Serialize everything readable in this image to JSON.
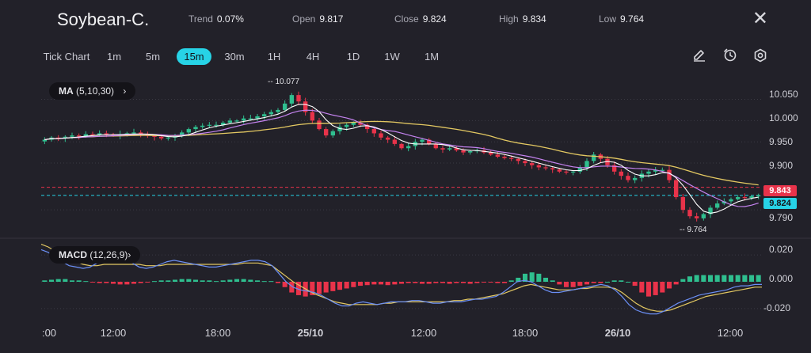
{
  "header": {
    "symbol": "Soybean-C.",
    "trend_label": "Trend",
    "trend_value": "0.07%",
    "open_label": "Open",
    "open_value": "9.817",
    "close_label": "Close",
    "close_value": "9.824",
    "high_label": "High",
    "high_value": "9.834",
    "low_label": "Low",
    "low_value": "9.764",
    "close_icon": "close-icon"
  },
  "timeframes": [
    "Tick Chart",
    "1m",
    "5m",
    "15m",
    "30m",
    "1H",
    "4H",
    "1D",
    "1W",
    "1M"
  ],
  "active_timeframe": "15m",
  "tools": [
    "pencil-icon",
    "timer-icon",
    "settings-icon"
  ],
  "indicators": {
    "ma_label": "MA",
    "ma_params": "(5,10,30)",
    "macd_label": "MACD",
    "macd_params": "(12,26,9)"
  },
  "price_axis": {
    "ticks": [
      "10.050",
      "10.000",
      "9.950",
      "9.900",
      "9.790"
    ],
    "bid_tag": "9.843",
    "last_tag": "9.824"
  },
  "macd_axis": {
    "ticks": [
      "0.020",
      "0.000",
      "-0.020"
    ]
  },
  "annotations": {
    "high": "10.077",
    "low": "9.764"
  },
  "time_axis": [
    ":00",
    "12:00",
    "18:00",
    "25/10",
    "12:00",
    "18:00",
    "26/10",
    "12:00"
  ],
  "colors": {
    "up": "#2fbf8f",
    "down": "#e8334a",
    "accent": "#27d3e6",
    "ma_fast": "#ffffff",
    "ma_mid": "#c583f0",
    "ma_slow": "#e3c862",
    "macd_line": "#6b8ff5",
    "signal_line": "#e3c862"
  },
  "chart_data": [
    {
      "type": "candlestick",
      "title": "Soybean-C. 15m",
      "price_range": [
        9.74,
        10.09
      ],
      "close_series": [
        9.955,
        9.96,
        9.958,
        9.962,
        9.965,
        9.963,
        9.968,
        9.966,
        9.97,
        9.967,
        9.965,
        9.968,
        9.97,
        9.972,
        9.967,
        9.964,
        9.962,
        9.958,
        9.96,
        9.965,
        9.972,
        9.98,
        9.985,
        9.988,
        9.99,
        9.99,
        9.995,
        10.0,
        10.0,
        10.005,
        10.005,
        10.01,
        10.015,
        10.02,
        10.025,
        10.04,
        10.06,
        10.045,
        10.02,
        10.0,
        9.98,
        9.965,
        9.975,
        9.985,
        9.99,
        9.995,
        9.99,
        9.98,
        9.97,
        9.96,
        9.955,
        9.945,
        9.935,
        9.94,
        9.95,
        9.955,
        9.945,
        9.935,
        9.932,
        9.935,
        9.93,
        9.925,
        9.928,
        9.93,
        9.925,
        9.92,
        9.915,
        9.912,
        9.91,
        9.905,
        9.9,
        9.895,
        9.89,
        9.888,
        9.885,
        9.88,
        9.878,
        9.88,
        9.89,
        9.905,
        9.92,
        9.91,
        9.895,
        9.88,
        9.87,
        9.86,
        9.865,
        9.875,
        9.88,
        9.884,
        9.884,
        9.86,
        9.82,
        9.79,
        9.775,
        9.77,
        9.78,
        9.795,
        9.805,
        9.81,
        9.815,
        9.82,
        9.818,
        9.822,
        9.824
      ],
      "ma_periods": [
        5,
        10,
        30
      ],
      "annotations": {
        "high": 10.077,
        "low": 9.764
      },
      "reference_lines": [
        9.843,
        9.824
      ]
    },
    {
      "type": "bar",
      "title": "MACD (12,26,9)",
      "range": [
        -0.026,
        0.026
      ],
      "histogram": [
        0.001,
        0.0015,
        0.002,
        0.002,
        0.001,
        0.001,
        0.0005,
        -0.0005,
        -0.001,
        -0.001,
        -0.0015,
        -0.002,
        -0.002,
        -0.0015,
        -0.001,
        -0.0005,
        0.0005,
        0.001,
        0.001,
        0.0015,
        0.002,
        0.002,
        0.0015,
        0.001,
        0.001,
        0.0005,
        0.001,
        0.0015,
        0.002,
        0.002,
        0.0015,
        0.001,
        0.0005,
        0.0005,
        -0.001,
        -0.004,
        -0.008,
        -0.01,
        -0.011,
        -0.01,
        -0.009,
        -0.008,
        -0.007,
        -0.006,
        -0.005,
        -0.004,
        -0.003,
        -0.0025,
        -0.002,
        -0.002,
        -0.0025,
        -0.002,
        -0.0015,
        -0.001,
        -0.001,
        -0.0015,
        -0.0015,
        -0.001,
        -0.001,
        -0.0015,
        -0.001,
        -0.001,
        -0.0015,
        -0.001,
        -0.0005,
        -0.0005,
        -0.001,
        -0.001,
        0.001,
        0.003,
        0.006,
        0.007,
        0.006,
        0.003,
        0.001,
        -0.002,
        -0.004,
        -0.004,
        -0.003,
        -0.002,
        -0.001,
        -0.001,
        0.0,
        0.001,
        0.001,
        0.0,
        -0.003,
        -0.008,
        -0.011,
        -0.01,
        -0.008,
        -0.005,
        -0.002,
        0.002,
        0.004,
        0.005,
        0.005,
        0.005,
        0.005,
        0.005,
        0.005,
        0.005,
        0.005,
        0.005,
        0.005
      ],
      "macd_line": [
        0.024,
        0.022,
        0.018,
        0.015,
        0.012,
        0.011,
        0.01,
        0.011,
        0.014,
        0.017,
        0.019,
        0.019,
        0.017,
        0.014,
        0.011,
        0.01,
        0.011,
        0.013,
        0.015,
        0.016,
        0.015,
        0.014,
        0.013,
        0.012,
        0.011,
        0.011,
        0.012,
        0.013,
        0.014,
        0.015,
        0.016,
        0.016,
        0.015,
        0.012,
        0.006,
        0.0,
        -0.004,
        -0.006,
        -0.007,
        -0.008,
        -0.01,
        -0.013,
        -0.016,
        -0.018,
        -0.018,
        -0.016,
        -0.015,
        -0.016,
        -0.017,
        -0.016,
        -0.015,
        -0.015,
        -0.015,
        -0.014,
        -0.014,
        -0.015,
        -0.016,
        -0.016,
        -0.015,
        -0.015,
        -0.015,
        -0.014,
        -0.013,
        -0.013,
        -0.012,
        -0.011,
        -0.008,
        -0.004,
        0.0,
        0.001,
        0.0,
        -0.003,
        -0.006,
        -0.008,
        -0.008,
        -0.007,
        -0.006,
        -0.005,
        -0.004,
        -0.003,
        -0.002,
        -0.003,
        -0.006,
        -0.011,
        -0.017,
        -0.021,
        -0.023,
        -0.024,
        -0.024,
        -0.022,
        -0.019,
        -0.016,
        -0.014,
        -0.012,
        -0.01,
        -0.009,
        -0.008,
        -0.007,
        -0.006,
        -0.004,
        -0.003,
        -0.003,
        -0.002,
        -0.002
      ],
      "signal_line": [
        0.028,
        0.026,
        0.023,
        0.02,
        0.017,
        0.015,
        0.013,
        0.012,
        0.012,
        0.013,
        0.013,
        0.013,
        0.013,
        0.013,
        0.013,
        0.012,
        0.012,
        0.012,
        0.013,
        0.013,
        0.013,
        0.013,
        0.013,
        0.013,
        0.013,
        0.013,
        0.013,
        0.013,
        0.013,
        0.014,
        0.014,
        0.014,
        0.013,
        0.012,
        0.008,
        0.004,
        0.0,
        -0.003,
        -0.006,
        -0.009,
        -0.011,
        -0.013,
        -0.015,
        -0.016,
        -0.017,
        -0.017,
        -0.017,
        -0.017,
        -0.017,
        -0.016,
        -0.016,
        -0.015,
        -0.015,
        -0.015,
        -0.015,
        -0.015,
        -0.015,
        -0.015,
        -0.015,
        -0.014,
        -0.014,
        -0.013,
        -0.013,
        -0.012,
        -0.011,
        -0.01,
        -0.009,
        -0.007,
        -0.005,
        -0.003,
        -0.002,
        -0.003,
        -0.004,
        -0.005,
        -0.006,
        -0.006,
        -0.006,
        -0.005,
        -0.005,
        -0.004,
        -0.004,
        -0.004,
        -0.005,
        -0.008,
        -0.012,
        -0.016,
        -0.019,
        -0.021,
        -0.022,
        -0.022,
        -0.021,
        -0.019,
        -0.017,
        -0.015,
        -0.013,
        -0.011,
        -0.01,
        -0.009,
        -0.008,
        -0.007,
        -0.006,
        -0.005,
        -0.004,
        -0.004
      ],
      "axis_ticks": [
        0.02,
        0.0,
        -0.02
      ]
    }
  ]
}
